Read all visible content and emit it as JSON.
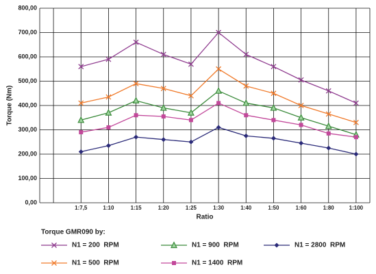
{
  "chart_data": {
    "type": "line",
    "y_label": "Torque (Nm)",
    "x_label": "Ratio",
    "legend_title": "Torque GMR090 by:",
    "categories": [
      null,
      "1:7,5",
      "1:10",
      "1:15",
      "1:20",
      "1:25",
      "1:30",
      "1:40",
      "1:50",
      "1:60",
      "1:80",
      "1:100"
    ],
    "ylim": [
      0,
      800
    ],
    "yticks": [
      {
        "value": 0,
        "label": "0,00"
      },
      {
        "value": 100,
        "label": "100,00"
      },
      {
        "value": 200,
        "label": "200,00"
      },
      {
        "value": 300,
        "label": "300,00"
      },
      {
        "value": 400,
        "label": "400,00"
      },
      {
        "value": 500,
        "label": "500,00"
      },
      {
        "value": 600,
        "label": "600,00"
      },
      {
        "value": 700,
        "label": "700,00"
      },
      {
        "value": 800,
        "label": "800,00"
      }
    ],
    "grid": true,
    "series": [
      {
        "name": "N1 = 200  RPM",
        "color": "#8e3a8e",
        "marker": "x",
        "values": [
          null,
          560,
          590,
          660,
          610,
          570,
          700,
          610,
          560,
          505,
          460,
          410
        ]
      },
      {
        "name": "N1 = 500  RPM",
        "color": "#f07a2a",
        "marker": "x",
        "values": [
          null,
          410,
          435,
          490,
          470,
          440,
          550,
          480,
          450,
          400,
          365,
          330
        ]
      },
      {
        "name": "N1 = 900  RPM",
        "color": "#3a8a3a",
        "marker": "triangle",
        "values": [
          null,
          340,
          370,
          420,
          390,
          370,
          460,
          410,
          390,
          350,
          315,
          280
        ]
      },
      {
        "name": "N1 = 1400  RPM",
        "color": "#c2489a",
        "marker": "square",
        "values": [
          null,
          290,
          310,
          360,
          355,
          340,
          410,
          360,
          340,
          320,
          285,
          270
        ]
      },
      {
        "name": "N1 = 2800  RPM",
        "color": "#2a2a78",
        "marker": "diamond",
        "values": [
          null,
          210,
          235,
          270,
          260,
          250,
          310,
          275,
          265,
          245,
          225,
          200
        ]
      }
    ]
  }
}
